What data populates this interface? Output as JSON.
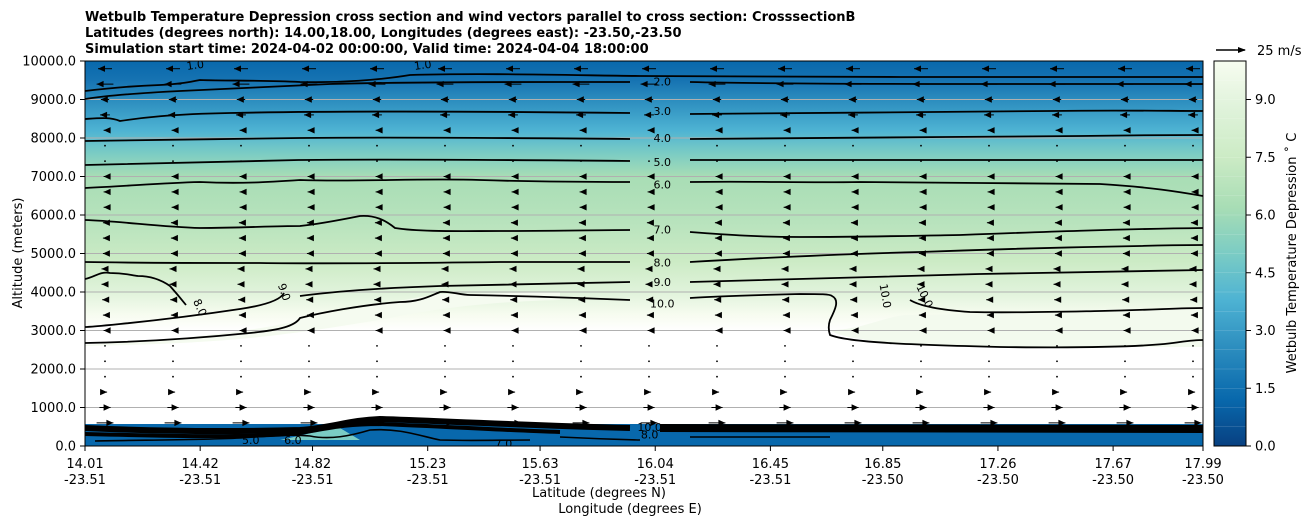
{
  "chart_data": {
    "type": "contour",
    "title_lines": [
      "Wetbulb Temperature Depression cross section and wind vectors parallel to cross section: CrosssectionB",
      "Latitudes (degrees north): 14.00,18.00, Longitudes (degrees east): -23.50,-23.50",
      "Simulation start time: 2024-04-02 00:00:00, Valid time: 2024-04-04 18:00:00"
    ],
    "ylabel": "Altitude (meters)",
    "xlabel_lat": "Latitude (degrees N)",
    "xlabel_lon": "Longitude (degrees E)",
    "ylim": [
      0,
      10000
    ],
    "yticks": [
      "0.0",
      "1000.0",
      "2000.0",
      "3000.0",
      "4000.0",
      "5000.0",
      "6000.0",
      "7000.0",
      "8000.0",
      "9000.0",
      "10000.0"
    ],
    "xlim": [
      14.01,
      17.99
    ],
    "xticks": [
      {
        "pos": 14.01,
        "lat": "14.01",
        "lon": "-23.51"
      },
      {
        "pos": 14.42,
        "lat": "14.42",
        "lon": "-23.51"
      },
      {
        "pos": 14.82,
        "lat": "14.82",
        "lon": "-23.51"
      },
      {
        "pos": 15.23,
        "lat": "15.23",
        "lon": "-23.51"
      },
      {
        "pos": 15.63,
        "lat": "15.63",
        "lon": "-23.51"
      },
      {
        "pos": 16.04,
        "lat": "16.04",
        "lon": "-23.51"
      },
      {
        "pos": 16.45,
        "lat": "16.45",
        "lon": "-23.51"
      },
      {
        "pos": 16.85,
        "lat": "16.85",
        "lon": "-23.50"
      },
      {
        "pos": 17.26,
        "lat": "17.26",
        "lon": "-23.50"
      },
      {
        "pos": 17.67,
        "lat": "17.67",
        "lon": "-23.50"
      },
      {
        "pos": 17.99,
        "lat": "17.99",
        "lon": "-23.50"
      }
    ],
    "colorbar": {
      "label": "Wetbulb Temperature Depression ˚ C",
      "range": [
        0,
        10
      ],
      "ticks": [
        "0.0",
        "1.5",
        "3.0",
        "4.5",
        "6.0",
        "7.5",
        "9.0"
      ],
      "colormap": [
        "#084081",
        "#0868ac",
        "#2b8cbe",
        "#4eb3d3",
        "#7bccc4",
        "#a8ddb5",
        "#ccebc5",
        "#e0f3db",
        "#f7fcf0"
      ]
    },
    "wind_key": {
      "label": "25 m/s",
      "speed_ms": 25
    },
    "contour_levels": [
      {
        "value": 2.0,
        "label": "2.0",
        "alt": 9500,
        "x": 16.04
      },
      {
        "value": 3.0,
        "label": "3.0",
        "alt": 8730,
        "x": 16.04
      },
      {
        "value": 4.0,
        "label": "4.0",
        "alt": 8020,
        "x": 16.04
      },
      {
        "value": 5.0,
        "label": "5.0",
        "alt": 7400,
        "x": 16.04
      },
      {
        "value": 6.0,
        "label": "6.0",
        "alt": 6820,
        "x": 16.04
      },
      {
        "value": 7.0,
        "label": "7.0",
        "alt": 5650,
        "x": 16.04
      },
      {
        "value": 8.0,
        "label": "8.0",
        "alt": 4790,
        "x": 16.04
      },
      {
        "value": 9.0,
        "label": "9.0",
        "alt": 4280,
        "x": 16.04
      },
      {
        "value": 10.0,
        "label": "10.0",
        "alt": 3730,
        "x": 16.04
      }
    ],
    "profile_at_16_04": [
      {
        "alt": 0,
        "value": 0.5
      },
      {
        "alt": 600,
        "value": 1.5
      },
      {
        "alt": 2700,
        "value": 10.5
      },
      {
        "alt": 3700,
        "value": 10.0
      },
      {
        "alt": 4300,
        "value": 9.0
      },
      {
        "alt": 4800,
        "value": 8.0
      },
      {
        "alt": 5650,
        "value": 7.0
      },
      {
        "alt": 6800,
        "value": 6.0
      },
      {
        "alt": 7400,
        "value": 5.0
      },
      {
        "alt": 8000,
        "value": 4.0
      },
      {
        "alt": 8700,
        "value": 3.0
      },
      {
        "alt": 9500,
        "value": 2.0
      },
      {
        "alt": 10000,
        "value": 1.0
      }
    ],
    "side_contour_labels": [
      {
        "label": "1.0",
        "x": 14.42,
        "alt": 9900
      },
      {
        "label": "1.0",
        "x": 15.23,
        "alt": 9900
      },
      {
        "label": "8.0",
        "x": 14.42,
        "alt": 3600
      },
      {
        "label": "9.0",
        "x": 14.72,
        "alt": 4000
      },
      {
        "label": "10.0",
        "x": 16.86,
        "alt": 3900
      },
      {
        "label": "10.0",
        "x": 17.0,
        "alt": 3900
      }
    ],
    "surface_labels": [
      {
        "label": "10.0",
        "x": 16.02,
        "alt": 500
      },
      {
        "label": "8.0",
        "x": 16.02,
        "alt": 300
      },
      {
        "label": "7.0",
        "x": 15.5,
        "alt": 70
      },
      {
        "label": "5.0",
        "x": 14.6,
        "alt": 150
      },
      {
        "label": "6.0",
        "x": 14.75,
        "alt": 150
      }
    ],
    "wind_rows": [
      {
        "alt": 9800,
        "u": -0.5
      },
      {
        "alt": 9400,
        "u": -0.6
      },
      {
        "alt": 9000,
        "u": -0.3
      },
      {
        "alt": 8600,
        "u": -0.35
      },
      {
        "alt": 8200,
        "u": -0.1
      },
      {
        "alt": 7800,
        "u": -0.05
      },
      {
        "alt": 7400,
        "u": -0.05
      },
      {
        "alt": 7000,
        "u": -0.1
      },
      {
        "alt": 6600,
        "u": -0.1
      },
      {
        "alt": 6200,
        "u": -0.1
      },
      {
        "alt": 5800,
        "u": -0.15
      },
      {
        "alt": 5400,
        "u": -0.15
      },
      {
        "alt": 5000,
        "u": -0.15
      },
      {
        "alt": 4600,
        "u": -0.25
      },
      {
        "alt": 4200,
        "u": -0.25
      },
      {
        "alt": 3800,
        "u": -0.2
      },
      {
        "alt": 3400,
        "u": -0.15
      },
      {
        "alt": 3000,
        "u": -0.1
      },
      {
        "alt": 2600,
        "u": 0.05
      },
      {
        "alt": 2200,
        "u": 0.05
      },
      {
        "alt": 1800,
        "u": 0.05
      },
      {
        "alt": 1400,
        "u": 0.15
      },
      {
        "alt": 1000,
        "u": 0.4
      },
      {
        "alt": 600,
        "u": 0.6
      }
    ]
  }
}
